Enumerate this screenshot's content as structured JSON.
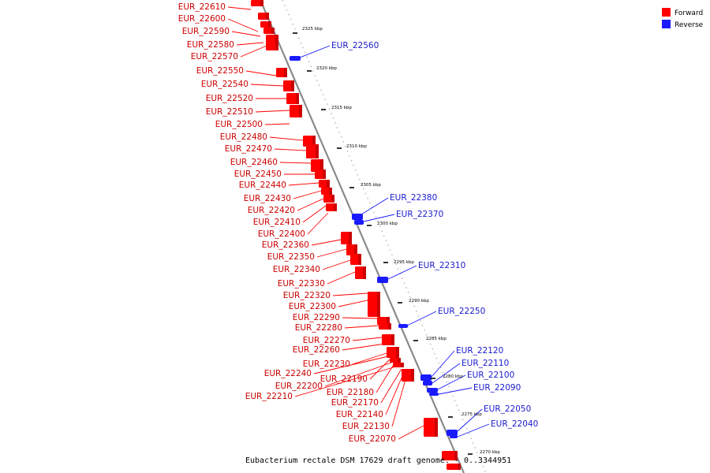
{
  "caption": "Eubacterium rectale DSM 17629 draft genome. - 0..3344951",
  "legend": [
    {
      "label": "Forward",
      "color": "#ff0000"
    },
    {
      "label": "Reverse",
      "color": "#1a1aff"
    }
  ],
  "colors": {
    "forward": "#ff0000",
    "reverse": "#1a1aff",
    "axis": "#777777"
  },
  "ticks": [
    "2325 kbp",
    "2320 kbp",
    "2315 kbp",
    "2310 kbp",
    "2305 kbp",
    "2300 kbp",
    "2295 kbp",
    "2290 kbp",
    "2285 kbp",
    "2280 kbp",
    "2275 kbp",
    "2270 kbp"
  ],
  "forward_genes": [
    "EUR_22610",
    "EUR_22600",
    "EUR_22590",
    "EUR_22580",
    "EUR_22570",
    "EUR_22550",
    "EUR_22540",
    "EUR_22520",
    "EUR_22510",
    "EUR_22500",
    "EUR_22480",
    "EUR_22470",
    "EUR_22460",
    "EUR_22450",
    "EUR_22440",
    "EUR_22430",
    "EUR_22420",
    "EUR_22410",
    "EUR_22400",
    "EUR_22360",
    "EUR_22350",
    "EUR_22340",
    "EUR_22330",
    "EUR_22320",
    "EUR_22300",
    "EUR_22290",
    "EUR_22280",
    "EUR_22270",
    "EUR_22260",
    "EUR_22230",
    "EUR_22240",
    "EUR_22190",
    "EUR_22200",
    "EUR_22180",
    "EUR_22210",
    "EUR_22170",
    "EUR_22140",
    "EUR_22130",
    "EUR_22070"
  ],
  "reverse_genes": [
    "EUR_22560",
    "EUR_22380",
    "EUR_22370",
    "EUR_22310",
    "EUR_22250",
    "EUR_22120",
    "EUR_22110",
    "EUR_22100",
    "EUR_22090",
    "EUR_22050",
    "EUR_22040"
  ]
}
